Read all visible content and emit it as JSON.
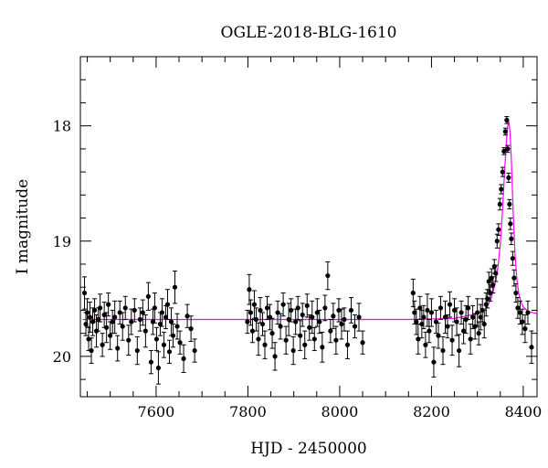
{
  "chart_data": {
    "type": "scatter",
    "title": "OGLE-2018-BLG-1610",
    "xlabel": "HJD - 2450000",
    "ylabel": "I magnitude",
    "xlim": [
      7435,
      8430
    ],
    "ylim": [
      20.35,
      17.4
    ],
    "y_inverted": true,
    "x_major_ticks": [
      7600,
      7800,
      8000,
      8200,
      8400
    ],
    "y_major_ticks": [
      18,
      19,
      20
    ],
    "x_tick_labels": [
      "7600",
      "7800",
      "8000",
      "8200",
      "8400"
    ],
    "y_tick_labels": [
      "18",
      "19",
      "20"
    ],
    "grid": false,
    "colors": {
      "data": "#000000",
      "model": "#ff00ff"
    },
    "model": {
      "name": "model",
      "baseline_mag": 19.68,
      "x": [
        7440,
        8150,
        8250,
        8300,
        8320,
        8330,
        8340,
        8345,
        8350,
        8355,
        8360,
        8365,
        8368,
        8371,
        8374,
        8378,
        8382,
        8386,
        8390,
        8395,
        8400,
        8410,
        8430
      ],
      "y": [
        19.68,
        19.68,
        19.67,
        19.63,
        19.58,
        19.5,
        19.35,
        19.22,
        19.02,
        18.72,
        18.35,
        18.05,
        17.95,
        18.05,
        18.3,
        18.75,
        19.12,
        19.33,
        19.45,
        19.53,
        19.57,
        19.61,
        19.63
      ]
    },
    "series": [
      {
        "name": "data",
        "x": [
          7444,
          7447,
          7450,
          7453,
          7456,
          7459,
          7462,
          7466,
          7470,
          7474,
          7478,
          7483,
          7487,
          7492,
          7496,
          7500,
          7505,
          7510,
          7516,
          7521,
          7527,
          7533,
          7540,
          7546,
          7553,
          7559,
          7565,
          7571,
          7577,
          7583,
          7589,
          7593,
          7597,
          7601,
          7605,
          7609,
          7613,
          7617,
          7621,
          7625,
          7629,
          7633,
          7637,
          7641,
          7646,
          7652,
          7660,
          7668,
          7676,
          7684,
          7799,
          7803,
          7806,
          7810,
          7814,
          7818,
          7823,
          7827,
          7832,
          7837,
          7842,
          7848,
          7853,
          7859,
          7865,
          7871,
          7877,
          7883,
          7889,
          7894,
          7899,
          7904,
          7909,
          7914,
          7919,
          7924,
          7929,
          7934,
          7940,
          7945,
          7951,
          7956,
          7962,
          7968,
          7974,
          7980,
          7986,
          7992,
          7998,
          8004,
          8010,
          8017,
          8025,
          8033,
          8042,
          8050,
          8160,
          8163,
          8167,
          8171,
          8175,
          8179,
          8183,
          8187,
          8191,
          8195,
          8200,
          8205,
          8210,
          8215,
          8220,
          8225,
          8230,
          8235,
          8240,
          8245,
          8250,
          8255,
          8260,
          8265,
          8270,
          8275,
          8280,
          8285,
          8290,
          8295,
          8300,
          8303,
          8307,
          8311,
          8315,
          8319,
          8322,
          8325,
          8328,
          8331,
          8334,
          8337,
          8340,
          8343,
          8346,
          8349,
          8352,
          8355,
          8358,
          8361,
          8364,
          8366,
          8368,
          8370,
          8372,
          8374,
          8377,
          8380,
          8384,
          8388,
          8393,
          8398,
          8404,
          8410,
          8418
        ],
        "y": [
          19.45,
          19.72,
          19.62,
          19.85,
          19.66,
          19.95,
          19.7,
          19.6,
          19.78,
          19.68,
          19.58,
          19.9,
          19.64,
          19.75,
          19.55,
          19.82,
          19.7,
          19.66,
          19.93,
          19.62,
          19.74,
          19.58,
          19.86,
          19.7,
          19.6,
          19.95,
          19.68,
          19.62,
          19.78,
          19.48,
          20.05,
          19.7,
          19.58,
          19.85,
          20.1,
          19.72,
          19.62,
          19.9,
          19.66,
          19.55,
          19.96,
          19.7,
          19.82,
          19.4,
          19.74,
          19.88,
          20.02,
          19.65,
          19.76,
          19.95,
          19.7,
          19.42,
          19.62,
          19.78,
          19.55,
          19.68,
          19.85,
          19.6,
          19.72,
          19.9,
          19.58,
          19.66,
          19.8,
          20.0,
          19.62,
          19.74,
          19.55,
          19.86,
          19.68,
          19.6,
          19.95,
          19.7,
          19.58,
          19.82,
          19.64,
          19.9,
          19.56,
          19.75,
          19.66,
          19.85,
          19.62,
          19.7,
          19.92,
          19.58,
          19.3,
          19.78,
          19.65,
          19.86,
          19.6,
          19.72,
          19.68,
          19.9,
          19.6,
          19.74,
          19.66,
          19.88,
          19.45,
          19.62,
          19.7,
          19.85,
          19.58,
          19.72,
          19.66,
          19.9,
          19.6,
          19.78,
          19.62,
          20.05,
          19.7,
          19.82,
          19.58,
          19.95,
          19.66,
          19.74,
          19.55,
          19.86,
          19.6,
          19.7,
          19.95,
          19.62,
          19.78,
          19.68,
          19.58,
          19.85,
          19.66,
          19.74,
          19.62,
          19.8,
          19.66,
          19.6,
          19.72,
          19.55,
          19.5,
          19.35,
          19.45,
          19.32,
          19.38,
          19.22,
          19.28,
          19.0,
          18.9,
          18.68,
          18.55,
          18.4,
          18.22,
          18.05,
          17.95,
          18.2,
          18.45,
          18.68,
          18.85,
          18.98,
          19.15,
          19.32,
          19.45,
          19.58,
          19.62,
          19.7,
          19.76,
          19.62,
          19.92
        ],
        "yerr": [
          0.14,
          0.1,
          0.12,
          0.1,
          0.13,
          0.11,
          0.12,
          0.1,
          0.14,
          0.1,
          0.12,
          0.1,
          0.11,
          0.13,
          0.1,
          0.12,
          0.1,
          0.14,
          0.11,
          0.1,
          0.12,
          0.1,
          0.13,
          0.11,
          0.1,
          0.12,
          0.1,
          0.11,
          0.14,
          0.12,
          0.1,
          0.11,
          0.13,
          0.1,
          0.14,
          0.1,
          0.12,
          0.11,
          0.1,
          0.13,
          0.1,
          0.12,
          0.1,
          0.14,
          0.11,
          0.1,
          0.12,
          0.1,
          0.11,
          0.1,
          0.1,
          0.13,
          0.11,
          0.1,
          0.12,
          0.1,
          0.14,
          0.11,
          0.1,
          0.12,
          0.1,
          0.11,
          0.13,
          0.12,
          0.1,
          0.11,
          0.1,
          0.12,
          0.14,
          0.1,
          0.12,
          0.11,
          0.1,
          0.13,
          0.1,
          0.12,
          0.1,
          0.11,
          0.14,
          0.1,
          0.12,
          0.1,
          0.13,
          0.11,
          0.12,
          0.1,
          0.11,
          0.12,
          0.1,
          0.13,
          0.1,
          0.12,
          0.11,
          0.1,
          0.12,
          0.1,
          0.12,
          0.1,
          0.11,
          0.13,
          0.1,
          0.12,
          0.1,
          0.11,
          0.14,
          0.1,
          0.12,
          0.13,
          0.1,
          0.11,
          0.1,
          0.12,
          0.14,
          0.1,
          0.11,
          0.13,
          0.1,
          0.12,
          0.14,
          0.1,
          0.11,
          0.12,
          0.1,
          0.13,
          0.1,
          0.11,
          0.12,
          0.1,
          0.11,
          0.1,
          0.12,
          0.1,
          0.08,
          0.08,
          0.07,
          0.08,
          0.07,
          0.06,
          0.07,
          0.06,
          0.05,
          0.05,
          0.04,
          0.04,
          0.03,
          0.03,
          0.03,
          0.03,
          0.04,
          0.04,
          0.05,
          0.05,
          0.06,
          0.07,
          0.08,
          0.09,
          0.1,
          0.11,
          0.12,
          0.1,
          0.14
        ]
      }
    ]
  }
}
